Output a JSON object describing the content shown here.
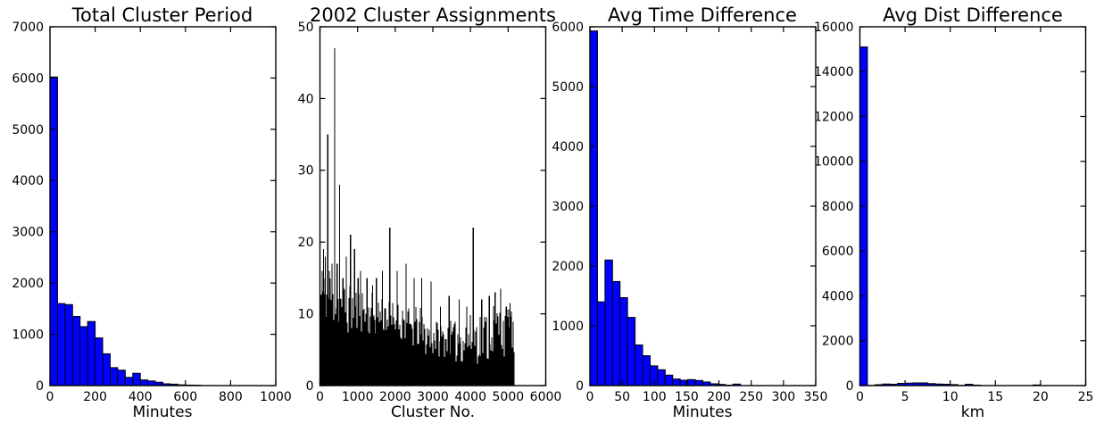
{
  "figure": {
    "background": "#ffffff",
    "axis_color": "#000000",
    "text_color": "#000000"
  },
  "chart_data": [
    {
      "type": "bar",
      "kind": "histogram",
      "title": "Total Cluster Period",
      "xlabel": "Minutes",
      "xlim": [
        0,
        1000
      ],
      "ylim": [
        0,
        7000
      ],
      "xticks": [
        0,
        200,
        400,
        600,
        800,
        1000
      ],
      "yticks": [
        0,
        1000,
        2000,
        3000,
        4000,
        5000,
        6000,
        7000
      ],
      "bin_start": 0,
      "bin_width": 33.333,
      "values": [
        6020,
        1600,
        1580,
        1350,
        1150,
        1250,
        930,
        620,
        350,
        300,
        160,
        240,
        110,
        90,
        65,
        35,
        28,
        15,
        10,
        8,
        0,
        0,
        0,
        0,
        0,
        0,
        0,
        0,
        0,
        0
      ],
      "bar_color": "#0000ff",
      "edge_color": "#000000",
      "grid": false
    },
    {
      "type": "bar",
      "kind": "dense-bars",
      "title": "2002 Cluster Assignments",
      "xlabel": "Cluster No.",
      "xlim": [
        0,
        6000
      ],
      "ylim": [
        0,
        50
      ],
      "xticks": [
        0,
        1000,
        2000,
        3000,
        4000,
        5000,
        6000
      ],
      "yticks": [
        0,
        10,
        20,
        30,
        40,
        50
      ],
      "x_data_max": 5180,
      "bar_color": "#000000",
      "grid": false,
      "noise_seed": 11,
      "base_profile": [
        [
          0,
          300,
          9,
          16
        ],
        [
          300,
          700,
          8,
          15
        ],
        [
          700,
          1200,
          7,
          14
        ],
        [
          1200,
          1800,
          7,
          13
        ],
        [
          1800,
          2300,
          6,
          12
        ],
        [
          2300,
          2700,
          5,
          11
        ],
        [
          2700,
          3100,
          4,
          10
        ],
        [
          3100,
          3600,
          4,
          9
        ],
        [
          3600,
          4100,
          3,
          10
        ],
        [
          4100,
          4500,
          3,
          11
        ],
        [
          4500,
          4900,
          4,
          12
        ],
        [
          4900,
          5100,
          8,
          11
        ],
        [
          5100,
          5180,
          4,
          9
        ]
      ],
      "spikes": [
        [
          60,
          16
        ],
        [
          95,
          19
        ],
        [
          140,
          18
        ],
        [
          205,
          35
        ],
        [
          250,
          16
        ],
        [
          320,
          17
        ],
        [
          390,
          47
        ],
        [
          455,
          17
        ],
        [
          520,
          28
        ],
        [
          610,
          15
        ],
        [
          700,
          18
        ],
        [
          810,
          21
        ],
        [
          920,
          19
        ],
        [
          1010,
          15
        ],
        [
          1080,
          16
        ],
        [
          1250,
          15
        ],
        [
          1400,
          14
        ],
        [
          1500,
          15
        ],
        [
          1660,
          16
        ],
        [
          1857,
          22
        ],
        [
          2050,
          16
        ],
        [
          2286,
          17
        ],
        [
          2500,
          15
        ],
        [
          2700,
          15
        ],
        [
          2950,
          14.5
        ],
        [
          3200,
          11
        ],
        [
          3430,
          12.5
        ],
        [
          3700,
          12
        ],
        [
          3900,
          11
        ],
        [
          4071,
          22
        ],
        [
          4300,
          12
        ],
        [
          4500,
          12.5
        ],
        [
          4650,
          13
        ],
        [
          4800,
          13.5
        ],
        [
          4950,
          11
        ],
        [
          5050,
          11.5
        ]
      ]
    },
    {
      "type": "bar",
      "kind": "histogram",
      "title": "Avg Time Difference",
      "xlabel": "Minutes",
      "xlim": [
        0,
        350
      ],
      "ylim": [
        0,
        6000
      ],
      "xticks": [
        0,
        50,
        100,
        150,
        200,
        250,
        300,
        350
      ],
      "yticks": [
        0,
        1000,
        2000,
        3000,
        4000,
        5000,
        6000
      ],
      "bin_start": 0,
      "bin_width": 11.667,
      "values": [
        5930,
        1400,
        2100,
        1740,
        1470,
        1140,
        680,
        500,
        330,
        265,
        175,
        110,
        90,
        100,
        85,
        60,
        30,
        20,
        8,
        25,
        0,
        0,
        0,
        0,
        0,
        0,
        0,
        0,
        0,
        0
      ],
      "bar_color": "#0000ff",
      "edge_color": "#000000",
      "grid": false
    },
    {
      "type": "bar",
      "kind": "histogram",
      "title": "Avg Dist Difference",
      "xlabel": "km",
      "xlim": [
        0,
        25
      ],
      "ylim": [
        0,
        16000
      ],
      "xticks": [
        0,
        5,
        10,
        15,
        20,
        25
      ],
      "yticks": [
        0,
        2000,
        4000,
        6000,
        8000,
        10000,
        12000,
        14000,
        16000
      ],
      "bin_start": 0,
      "bin_width": 0.8333,
      "values": [
        15100,
        10,
        40,
        70,
        60,
        100,
        110,
        120,
        120,
        90,
        70,
        60,
        45,
        12,
        60,
        22,
        0,
        0,
        0,
        0,
        0,
        0,
        0,
        30,
        0,
        0,
        0,
        0,
        0,
        0
      ],
      "bar_color": "#0000ff",
      "edge_color": "#000000",
      "grid": false
    }
  ]
}
